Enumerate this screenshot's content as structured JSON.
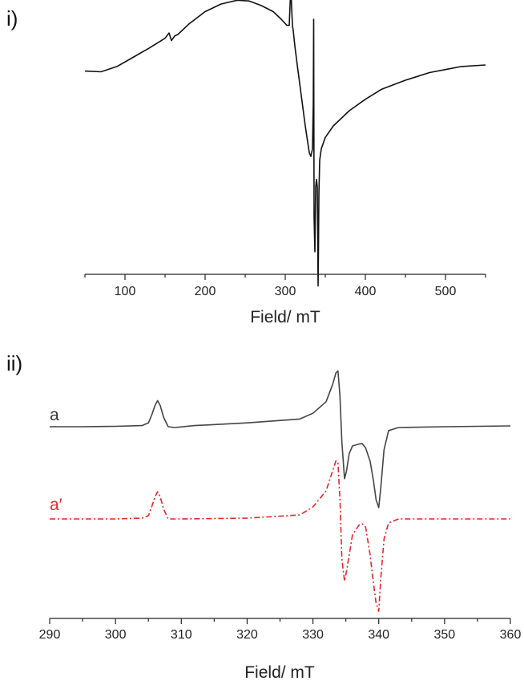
{
  "chart_data": [
    {
      "panel": "i)",
      "type": "line",
      "xlabel": "Field/ mT",
      "ylabel": "",
      "xlim": [
        50,
        550
      ],
      "xticks": [
        100,
        200,
        300,
        400,
        500
      ],
      "y_axis_shown": false,
      "grid": false,
      "series": [
        {
          "color": "#111111",
          "x": [
            50,
            70,
            90,
            110,
            130,
            150,
            155,
            158,
            162,
            166,
            180,
            200,
            220,
            240,
            255,
            270,
            285,
            295,
            302,
            305,
            307,
            308,
            309,
            310,
            312,
            315,
            320,
            325,
            330,
            332,
            334,
            335,
            335.5,
            336,
            337,
            338,
            339,
            340,
            341,
            341.5,
            342,
            343,
            345,
            350,
            360,
            380,
            400,
            420,
            450,
            480,
            500,
            520,
            550
          ],
          "y": [
            0.12,
            0.11,
            0.18,
            0.3,
            0.42,
            0.55,
            0.62,
            0.52,
            0.58,
            0.6,
            0.74,
            0.9,
            1.0,
            1.05,
            1.04,
            0.98,
            0.9,
            0.8,
            0.72,
            0.72,
            1.25,
            0.95,
            0.72,
            0.65,
            0.45,
            0.2,
            -0.2,
            -0.6,
            -0.95,
            -1.0,
            -0.9,
            -0.3,
            0.8,
            -1.8,
            -2.25,
            -1.4,
            -1.3,
            -1.4,
            -2.7,
            -2.2,
            -1.5,
            -1.05,
            -0.9,
            -0.75,
            -0.6,
            -0.4,
            -0.25,
            -0.12,
            0.0,
            0.1,
            0.14,
            0.18,
            0.2
          ]
        }
      ]
    },
    {
      "panel": "ii)",
      "type": "line",
      "xlabel": "Field/ mT",
      "ylabel": "",
      "xlim": [
        290,
        360
      ],
      "xticks": [
        290,
        300,
        310,
        320,
        330,
        340,
        350,
        360
      ],
      "y_axis_shown": false,
      "grid": false,
      "series": [
        {
          "name": "a",
          "color": "#444444",
          "style": "solid",
          "x": [
            290,
            295,
            300,
            304,
            305,
            305.5,
            306,
            306.4,
            306.8,
            307.3,
            308,
            309,
            312,
            320,
            328,
            330,
            332,
            333,
            333.5,
            333.8,
            334.1,
            334.4,
            334.8,
            335.1,
            335.5,
            336,
            337,
            337.5,
            338,
            338.7,
            339.2,
            339.6,
            340,
            340.3,
            340.8,
            341.5,
            343,
            350,
            360
          ],
          "y": [
            0,
            0,
            0.01,
            0.03,
            0.1,
            0.3,
            0.55,
            0.68,
            0.55,
            0.25,
            0.0,
            -0.02,
            0.03,
            0.1,
            0.2,
            0.35,
            0.65,
            1.1,
            1.4,
            1.45,
            0.8,
            -0.4,
            -1.35,
            -1.15,
            -0.7,
            -0.5,
            -0.45,
            -0.44,
            -0.55,
            -0.9,
            -1.4,
            -1.9,
            -2.1,
            -1.6,
            -0.6,
            -0.1,
            -0.02,
            0,
            0.02
          ]
        },
        {
          "name": "a′",
          "color": "#e8262a",
          "style": "dashdot",
          "x": [
            290,
            300,
            304,
            305,
            305.5,
            306,
            306.4,
            306.8,
            307.3,
            308,
            310,
            320,
            328,
            330,
            332,
            333,
            333.5,
            333.8,
            334.1,
            334.4,
            334.8,
            335.1,
            335.5,
            336,
            337,
            337.5,
            338,
            338.7,
            339.2,
            339.6,
            340,
            340.3,
            340.8,
            341.5,
            343,
            350,
            360
          ],
          "y": [
            0,
            0,
            0.02,
            0.08,
            0.3,
            0.55,
            0.68,
            0.55,
            0.25,
            0.0,
            0.0,
            0.02,
            0.1,
            0.3,
            0.7,
            1.2,
            1.45,
            1.4,
            0.5,
            -1.0,
            -1.55,
            -1.3,
            -0.9,
            -0.4,
            -0.15,
            -0.12,
            -0.2,
            -0.9,
            -1.6,
            -2.1,
            -2.3,
            -1.5,
            -0.5,
            -0.1,
            0,
            0,
            0
          ]
        }
      ]
    }
  ]
}
